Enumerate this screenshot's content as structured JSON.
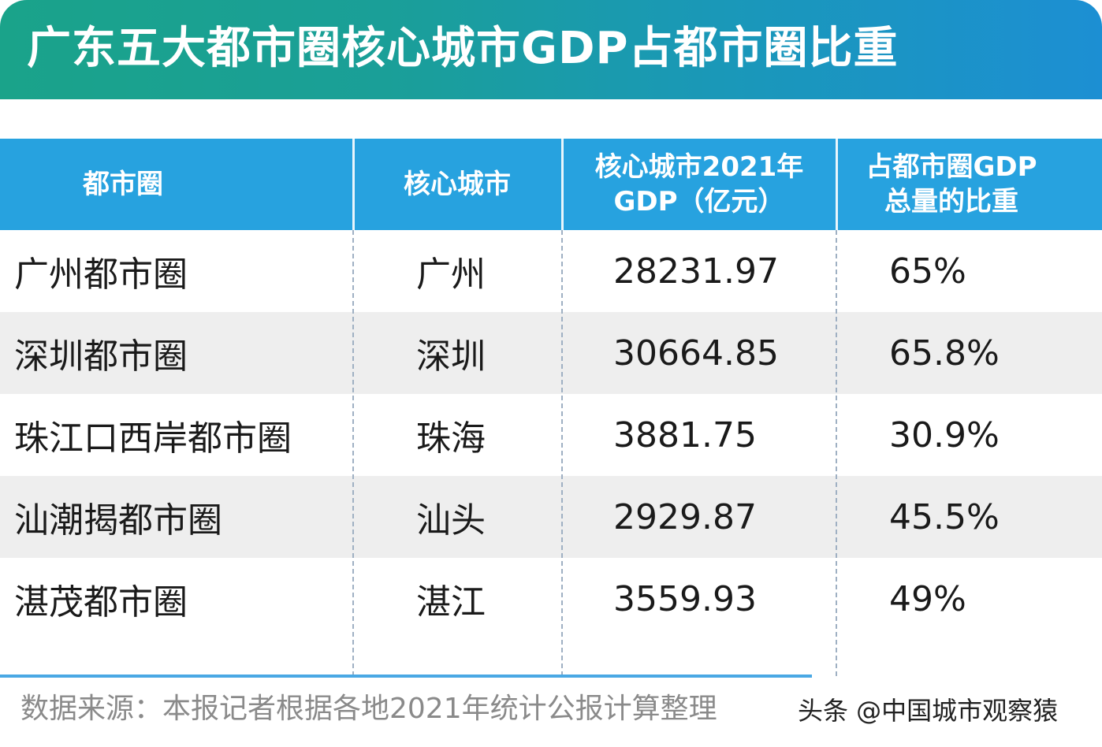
{
  "title": "广东五大都市圈核心城市GDP占都市圈比重",
  "table": {
    "headers": [
      "都市圈",
      "核心城市",
      "核心城市2021年\nGDP（亿元）",
      "占都市圈GDP\n总量的比重"
    ],
    "rows": [
      {
        "circle": "广州都市圈",
        "city": "广州",
        "gdp": "28231.97",
        "share": "65%"
      },
      {
        "circle": "深圳都市圈",
        "city": "深圳",
        "gdp": "30664.85",
        "share": "65.8%"
      },
      {
        "circle": "珠江口西岸都市圈",
        "city": "珠海",
        "gdp": "3881.75",
        "share": "30.9%"
      },
      {
        "circle": "汕潮揭都市圈",
        "city": "汕头",
        "gdp": "2929.87",
        "share": "45.5%"
      },
      {
        "circle": "湛茂都市圈",
        "city": "湛江",
        "gdp": "3559.93",
        "share": "49%"
      }
    ]
  },
  "source": "数据来源：本报记者根据各地2021年统计公报计算整理",
  "watermark": "头条 @中国城市观察猿"
}
